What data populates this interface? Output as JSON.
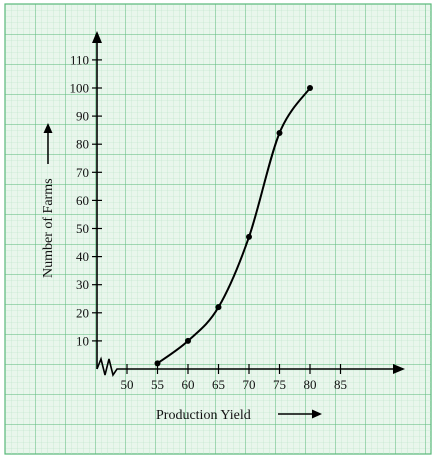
{
  "chart_data": {
    "type": "line",
    "title": "",
    "xlabel": "Production Yield",
    "ylabel": "Number of Farms",
    "x_ticks": [
      "50",
      "55",
      "60",
      "65",
      "70",
      "75",
      "80",
      "85"
    ],
    "y_ticks": [
      "10",
      "20",
      "30",
      "40",
      "50",
      "60",
      "70",
      "80",
      "90",
      "100",
      "110"
    ],
    "xlim": [
      45,
      93
    ],
    "ylim": [
      0,
      117
    ],
    "axis_break": "x-axis zigzag near origin",
    "grid": true,
    "background": "graph paper",
    "colors": {
      "grid_major": "#57b879",
      "grid_minor": "#b6e2c5",
      "paper": "#e9f6ec",
      "line": "#000000"
    },
    "series": [
      {
        "x": [
          55,
          60,
          65,
          70,
          75,
          80
        ],
        "y": [
          2,
          10,
          22,
          47,
          84,
          100
        ]
      }
    ]
  }
}
